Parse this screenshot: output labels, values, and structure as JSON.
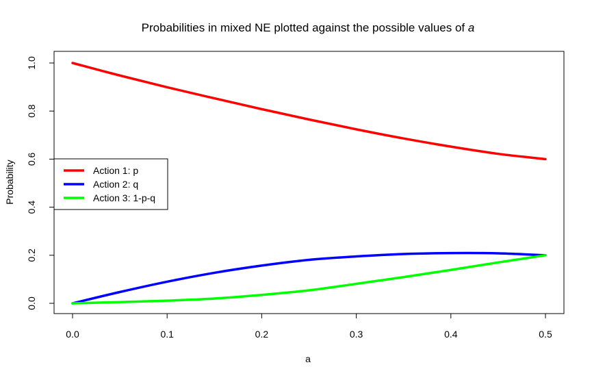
{
  "chart_data": {
    "type": "line",
    "title": "Probabilities in mixed NE plotted against the possible values of ",
    "title_italic_var": "a",
    "xlabel": "a",
    "ylabel": "Probability",
    "xlim": [
      0.0,
      0.5
    ],
    "ylim": [
      0.0,
      1.0
    ],
    "xticks": [
      "0.0",
      "0.1",
      "0.2",
      "0.3",
      "0.4",
      "0.5"
    ],
    "yticks": [
      "0.0",
      "0.2",
      "0.4",
      "0.6",
      "0.8",
      "1.0"
    ],
    "grid": false,
    "legend_position": "left",
    "x": [
      0.0,
      0.05,
      0.1,
      0.15,
      0.2,
      0.25,
      0.3,
      0.35,
      0.4,
      0.45,
      0.5
    ],
    "series": [
      {
        "name": "Action 1: p",
        "color": "#ff0000",
        "values": [
          1.0,
          0.948,
          0.899,
          0.853,
          0.808,
          0.765,
          0.724,
          0.686,
          0.652,
          0.622,
          0.6
        ]
      },
      {
        "name": "Action 2: q",
        "color": "#0000ff",
        "values": [
          0.0,
          0.047,
          0.09,
          0.127,
          0.157,
          0.181,
          0.195,
          0.205,
          0.209,
          0.208,
          0.2
        ]
      },
      {
        "name": "Action 3: 1-p-q",
        "color": "#00ff00",
        "values": [
          0.0,
          0.005,
          0.011,
          0.02,
          0.035,
          0.054,
          0.081,
          0.109,
          0.139,
          0.17,
          0.2
        ]
      }
    ]
  }
}
